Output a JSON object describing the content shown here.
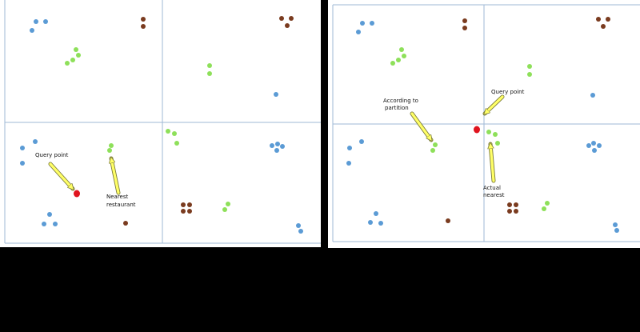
{
  "colors": {
    "blue": "#5b9bd5",
    "green": "#8ee05a",
    "brown": "#7a3b1f",
    "red": "#e0141e",
    "arrow_fill": "#ffff66",
    "arrow_stroke": "#7a7a3a",
    "grid_line": "#9fb9d6",
    "panel_bg": "#ffffff",
    "background": "#000000"
  },
  "left_panel": {
    "labels": {
      "query_point": "Query point",
      "nearest_line1": "Nearest",
      "nearest_line2": "restaurant"
    }
  },
  "right_panel": {
    "labels": {
      "partition_line1": "According to",
      "partition_line2": "partition",
      "query_point": "Query point",
      "actual_line1": "Actual",
      "actual_line2": "nearest"
    }
  }
}
